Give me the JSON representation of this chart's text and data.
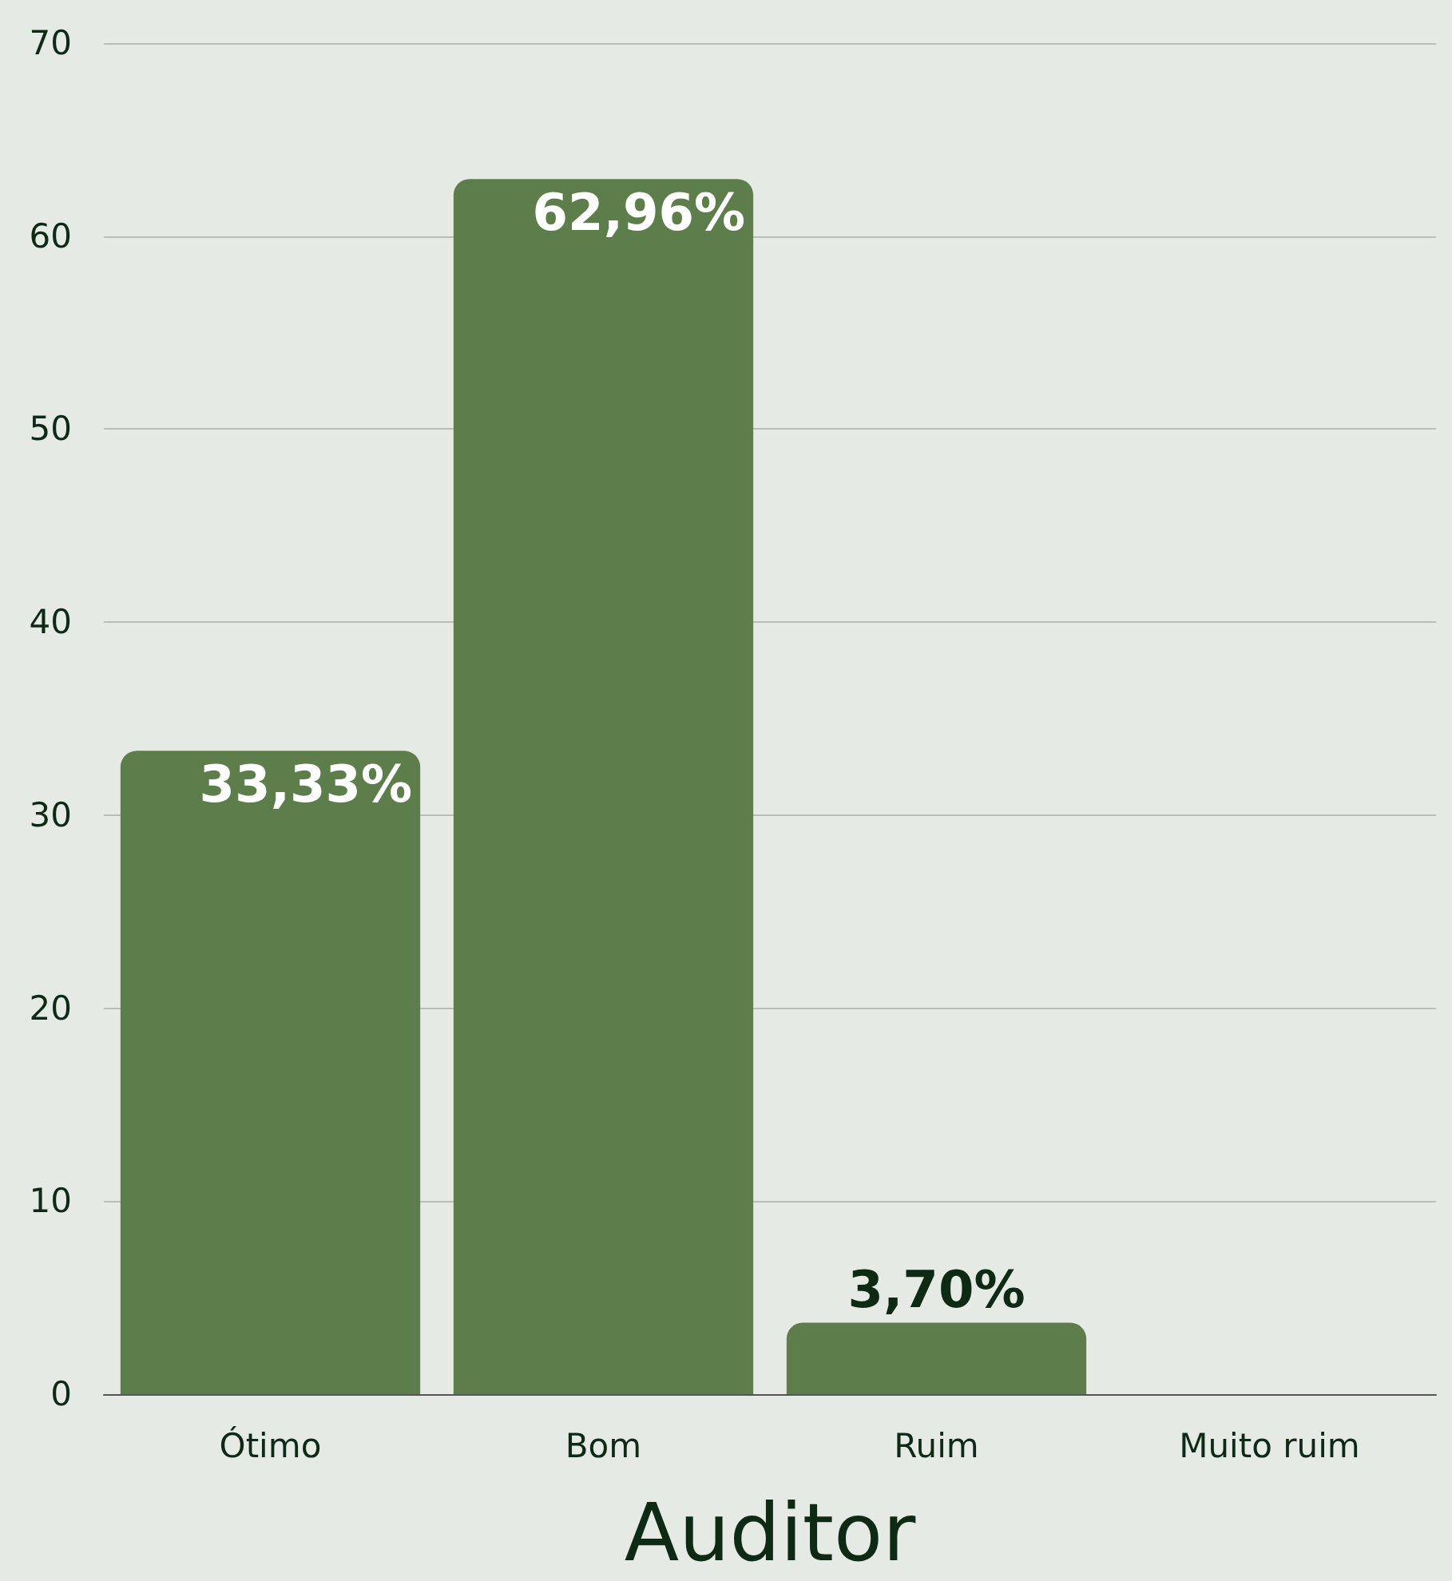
{
  "chart_data": {
    "type": "bar",
    "xlabel": "Auditor",
    "categories": [
      "Ótimo",
      "Bom",
      "Ruim",
      "Muito ruim"
    ],
    "values": [
      33.33,
      62.96,
      3.7,
      0
    ],
    "value_labels": [
      "33,33%",
      "62,96%",
      "3,70%",
      null
    ],
    "color": "#5d7d4b",
    "ylim": [
      0,
      70
    ],
    "yticks": [
      0,
      10,
      20,
      30,
      40,
      50,
      60,
      70
    ],
    "grid": "y"
  }
}
